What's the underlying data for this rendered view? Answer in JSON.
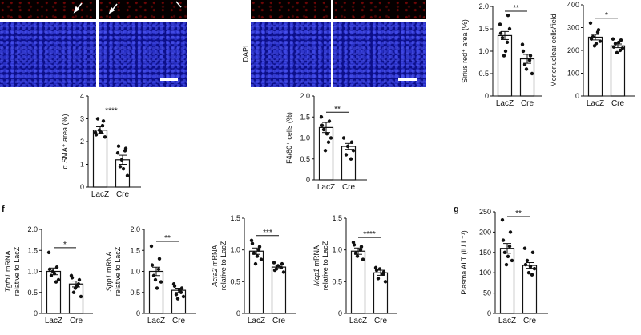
{
  "labels": {
    "dapi": "DAPI",
    "panel_f": "f",
    "panel_g": "g"
  },
  "colors": {
    "dapi_channel": "#0c0f8a",
    "red_channel": "#050000",
    "bar_fill": "#ffffff",
    "ink": "#111111"
  },
  "chart_data": [
    {
      "id": "asma",
      "type": "bar",
      "categories": [
        "LacZ",
        "Cre"
      ],
      "values": [
        2.5,
        1.2
      ],
      "errors": [
        0.15,
        0.2
      ],
      "points": [
        [
          2.4,
          2.9,
          3.0,
          2.2,
          2.5,
          2.7,
          2.3,
          2.4
        ],
        [
          1.5,
          1.7,
          0.9,
          0.5,
          1.2,
          1.6,
          1.8,
          0.8
        ]
      ],
      "ylabel": "α SMA⁺ area (%)",
      "ylim": [
        0,
        4
      ],
      "yticks": [
        "0",
        "1",
        "2",
        "3",
        "4"
      ],
      "significance": "****"
    },
    {
      "id": "f480",
      "type": "bar",
      "categories": [
        "LacZ",
        "Cre"
      ],
      "values": [
        1.25,
        0.8
      ],
      "errors": [
        0.12,
        0.07
      ],
      "points": [
        [
          1.5,
          1.4,
          1.2,
          1.0,
          0.7,
          0.9,
          1.3,
          1.1
        ],
        [
          1.0,
          0.9,
          0.6,
          0.7,
          0.8,
          0.5
        ]
      ],
      "ylabel": "F4/80⁺ cells (%)",
      "ylim": [
        0,
        2.0
      ],
      "yticks": [
        "0",
        "0.5",
        "1.0",
        "1.5",
        "2.0"
      ],
      "significance": "**"
    },
    {
      "id": "sirius",
      "type": "bar",
      "categories": [
        "LacZ",
        "Cre"
      ],
      "values": [
        1.35,
        0.83
      ],
      "errors": [
        0.09,
        0.1
      ],
      "points": [
        [
          1.6,
          1.8,
          1.3,
          1.5,
          0.9,
          1.2,
          1.4,
          1.0
        ],
        [
          1.15,
          0.9,
          0.7,
          0.5,
          0.6,
          0.8,
          1.0
        ]
      ],
      "ylabel": "Sirius red⁺ area (%)",
      "ylim": [
        0,
        2.0
      ],
      "yticks": [
        "0",
        "0.5",
        "1.0",
        "1.5",
        "2.0"
      ],
      "significance": "**"
    },
    {
      "id": "mono",
      "type": "bar",
      "categories": [
        "LacZ",
        "Cre"
      ],
      "values": [
        258,
        220
      ],
      "errors": [
        12,
        8
      ],
      "points": [
        [
          320,
          290,
          260,
          240,
          220,
          280,
          250,
          230
        ],
        [
          250,
          245,
          230,
          210,
          190,
          200,
          215,
          235
        ]
      ],
      "ylabel": "Mononuclear cells/field",
      "ylim": [
        0,
        400
      ],
      "yticks": [
        "0",
        "100",
        "200",
        "300",
        "400"
      ],
      "significance": "*"
    },
    {
      "id": "tgfb1",
      "type": "bar",
      "categories": [
        "LacZ",
        "Cre"
      ],
      "values": [
        1.0,
        0.7
      ],
      "errors": [
        0.08,
        0.07
      ],
      "points": [
        [
          1.45,
          1.1,
          0.9,
          0.8,
          1.0,
          0.75,
          1.05,
          0.95
        ],
        [
          0.9,
          0.8,
          0.5,
          0.4,
          0.6,
          0.7,
          0.85,
          0.65
        ]
      ],
      "ylabel_gene": "Tgfb1",
      "ylabel_line1": " mRNA",
      "ylabel_line2": "relative to LacZ",
      "ylim": [
        0,
        2.0
      ],
      "yticks": [
        "0",
        "0.5",
        "1.0",
        "1.5",
        "2.0"
      ],
      "significance": "*"
    },
    {
      "id": "spp1",
      "type": "bar",
      "categories": [
        "LacZ",
        "Cre"
      ],
      "values": [
        1.0,
        0.55
      ],
      "errors": [
        0.1,
        0.05
      ],
      "points": [
        [
          1.6,
          1.3,
          0.9,
          0.75,
          0.8,
          1.05,
          1.15,
          0.6
        ],
        [
          0.7,
          0.6,
          0.45,
          0.4,
          0.35,
          0.5,
          0.65,
          0.55
        ]
      ],
      "ylabel_gene": "Spp1",
      "ylabel_line1": " mRNA",
      "ylabel_line2": "relative to LacZ",
      "ylim": [
        0,
        2.0
      ],
      "yticks": [
        "0",
        "0.5",
        "1.0",
        "1.5",
        "2.0"
      ],
      "significance": "**"
    },
    {
      "id": "acta2",
      "type": "bar",
      "categories": [
        "LacZ",
        "Cre"
      ],
      "values": [
        0.98,
        0.73
      ],
      "errors": [
        0.05,
        0.03
      ],
      "points": [
        [
          1.15,
          1.05,
          0.95,
          0.85,
          0.78,
          1.0,
          1.1,
          0.9
        ],
        [
          0.8,
          0.78,
          0.7,
          0.65,
          0.75,
          0.72,
          0.68
        ]
      ],
      "ylabel_gene": "Acta2",
      "ylabel_line1": " mRNA",
      "ylabel_line2": "relative to LacZ",
      "ylim": [
        0,
        1.5
      ],
      "yticks": [
        "0",
        "0.5",
        "1.0",
        "1.5"
      ],
      "significance": "***"
    },
    {
      "id": "mcp1",
      "type": "bar",
      "categories": [
        "LacZ",
        "Cre"
      ],
      "values": [
        0.98,
        0.64
      ],
      "errors": [
        0.05,
        0.04
      ],
      "points": [
        [
          1.12,
          1.05,
          0.95,
          0.85,
          0.9,
          1.0,
          1.08
        ],
        [
          0.72,
          0.65,
          0.55,
          0.5,
          0.7,
          0.62,
          0.68
        ]
      ],
      "ylabel_gene": "Mcp1",
      "ylabel_line1": " mRNA",
      "ylabel_line2": "relative to LacZ",
      "ylim": [
        0,
        1.5
      ],
      "yticks": [
        "0",
        "0.5",
        "1.0",
        "1.5"
      ],
      "significance": "****"
    },
    {
      "id": "alt",
      "type": "bar",
      "categories": [
        "LacZ",
        "Cre"
      ],
      "values": [
        160,
        118
      ],
      "errors": [
        12,
        7
      ],
      "points": [
        [
          230,
          200,
          150,
          130,
          120,
          165,
          180,
          140
        ],
        [
          160,
          150,
          130,
          110,
          100,
          95,
          120,
          115
        ]
      ],
      "ylabel": "Plasma ALT (IU L⁻¹)",
      "ylim": [
        0,
        250
      ],
      "yticks": [
        "0",
        "50",
        "100",
        "150",
        "200",
        "250"
      ],
      "significance": "**"
    }
  ]
}
